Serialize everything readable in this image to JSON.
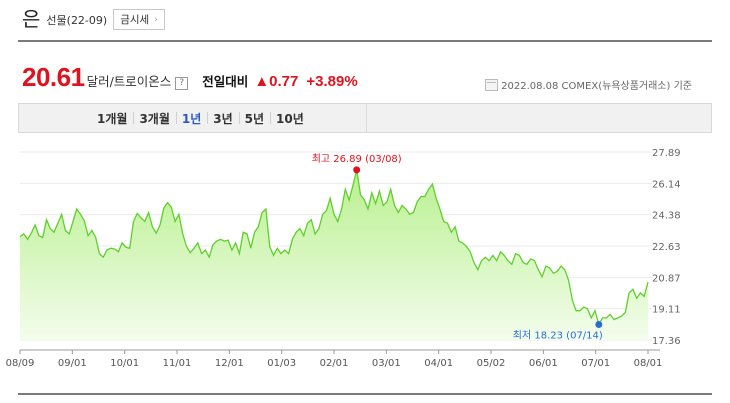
{
  "header": {
    "title": "은",
    "subtitle": "선물(22-09)",
    "quote_button": "금시세",
    "quote_chevron": "›"
  },
  "price": {
    "value": "20.61",
    "unit": "달러/트로이온스",
    "help": "?",
    "compare_label": "전일대비",
    "change": "▲0.77",
    "percent": "+3.89%"
  },
  "date_info": "2022.08.08  COMEX(뉴욕상품거래소) 기준",
  "tabs": [
    "1개월",
    "3개월",
    "1년",
    "3년",
    "5년",
    "10년"
  ],
  "active_tab": "1년",
  "colors": {
    "up": "#e0121e",
    "line": "#5fcf2c",
    "accent": "#2b58c9",
    "high_dot": "#e0121e",
    "low_dot": "#2a6cd6"
  },
  "chart_data": {
    "type": "area",
    "ylim": [
      17.36,
      27.89
    ],
    "y_ticks": [
      "27.89",
      "26.14",
      "24.38",
      "22.63",
      "20.87",
      "19.11",
      "17.36"
    ],
    "x_ticks": [
      "08/09",
      "09/01",
      "10/01",
      "11/01",
      "12/01",
      "01/03",
      "02/01",
      "03/01",
      "04/01",
      "05/02",
      "06/01",
      "07/01",
      "08/01"
    ],
    "high_label": "최고 26.89 (03/08)",
    "low_label": "최저 18.23 (07/14)",
    "high": {
      "date": "03/08",
      "value": 26.89
    },
    "low": {
      "date": "07/14",
      "value": 18.23
    },
    "series": [
      {
        "values": [
          23.15,
          23.3,
          23.0,
          23.35,
          23.8,
          23.2,
          23.1,
          24.1,
          23.6,
          23.4,
          23.9,
          24.4,
          23.5,
          23.3,
          24.0,
          24.7,
          24.4,
          24.05,
          23.2,
          23.5,
          23.1,
          22.2,
          22.0,
          22.4,
          22.5,
          22.45,
          22.3,
          22.8,
          22.55,
          22.5,
          24.0,
          24.45,
          24.2,
          24.0,
          24.5,
          23.7,
          23.35,
          23.8,
          24.75,
          25.05,
          24.8,
          24.0,
          24.4,
          23.3,
          22.6,
          22.25,
          22.5,
          22.8,
          22.2,
          22.4,
          22.0,
          22.7,
          22.9,
          23.0,
          22.9,
          22.95,
          22.4,
          22.8,
          22.2,
          23.4,
          23.3,
          22.5,
          23.4,
          23.7,
          24.5,
          24.7,
          22.6,
          22.1,
          22.5,
          22.2,
          22.4,
          22.2,
          23.0,
          23.4,
          23.6,
          23.2,
          23.9,
          24.1,
          23.3,
          23.6,
          24.4,
          24.6,
          25.3,
          24.4,
          24.0,
          24.7,
          25.8,
          25.2,
          26.0,
          26.89,
          25.5,
          25.2,
          24.7,
          25.6,
          25.0,
          25.7,
          24.9,
          25.1,
          25.8,
          24.9,
          24.5,
          24.9,
          24.7,
          24.4,
          24.5,
          25.1,
          25.4,
          25.4,
          25.8,
          26.1,
          25.3,
          24.7,
          24.0,
          23.9,
          23.4,
          23.7,
          22.9,
          22.8,
          22.6,
          22.3,
          21.7,
          21.3,
          21.8,
          22.0,
          21.8,
          22.1,
          21.8,
          22.3,
          22.1,
          21.8,
          21.6,
          22.2,
          22.1,
          21.7,
          21.6,
          21.9,
          21.8,
          21.3,
          20.9,
          21.5,
          21.4,
          21.1,
          21.2,
          21.5,
          21.3,
          20.7,
          19.6,
          19.0,
          19.0,
          19.2,
          19.1,
          18.6,
          19.0,
          18.23,
          18.6,
          18.6,
          18.8,
          18.5,
          18.6,
          18.7,
          18.9,
          20.0,
          20.2,
          19.7,
          20.0,
          19.8,
          20.61
        ]
      }
    ]
  }
}
